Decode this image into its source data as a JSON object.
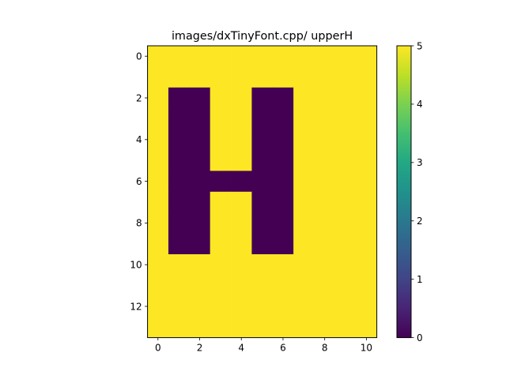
{
  "chart_data": {
    "type": "heatmap",
    "title": "images/dxTinyFont.cpp/ upperH",
    "xlabel": "",
    "ylabel": "",
    "colormap": "viridis",
    "color_min_hex": "#440154",
    "color_max_hex": "#fde725",
    "vmin": 0,
    "vmax": 5,
    "xlim": [
      -0.5,
      10.5
    ],
    "ylim": [
      13.5,
      -0.5
    ],
    "x_ticks": [
      0,
      2,
      4,
      6,
      8,
      10
    ],
    "y_ticks": [
      0,
      2,
      4,
      6,
      8,
      10,
      12
    ],
    "colorbar_ticks": [
      0,
      1,
      2,
      3,
      4,
      5
    ],
    "grid": false,
    "rows": 14,
    "cols": 11,
    "matrix": [
      [
        5,
        5,
        5,
        5,
        5,
        5,
        5,
        5,
        5,
        5,
        5
      ],
      [
        5,
        5,
        5,
        5,
        5,
        5,
        5,
        5,
        5,
        5,
        5
      ],
      [
        5,
        0,
        0,
        5,
        5,
        0,
        0,
        5,
        5,
        5,
        5
      ],
      [
        5,
        0,
        0,
        5,
        5,
        0,
        0,
        5,
        5,
        5,
        5
      ],
      [
        5,
        0,
        0,
        5,
        5,
        0,
        0,
        5,
        5,
        5,
        5
      ],
      [
        5,
        0,
        0,
        5,
        5,
        0,
        0,
        5,
        5,
        5,
        5
      ],
      [
        5,
        0,
        0,
        0,
        0,
        0,
        0,
        5,
        5,
        5,
        5
      ],
      [
        5,
        0,
        0,
        5,
        5,
        0,
        0,
        5,
        5,
        5,
        5
      ],
      [
        5,
        0,
        0,
        5,
        5,
        0,
        0,
        5,
        5,
        5,
        5
      ],
      [
        5,
        0,
        0,
        5,
        5,
        0,
        0,
        5,
        5,
        5,
        5
      ],
      [
        5,
        5,
        5,
        5,
        5,
        5,
        5,
        5,
        5,
        5,
        5
      ],
      [
        5,
        5,
        5,
        5,
        5,
        5,
        5,
        5,
        5,
        5,
        5
      ],
      [
        5,
        5,
        5,
        5,
        5,
        5,
        5,
        5,
        5,
        5,
        5
      ],
      [
        5,
        5,
        5,
        5,
        5,
        5,
        5,
        5,
        5,
        5,
        5
      ]
    ]
  }
}
